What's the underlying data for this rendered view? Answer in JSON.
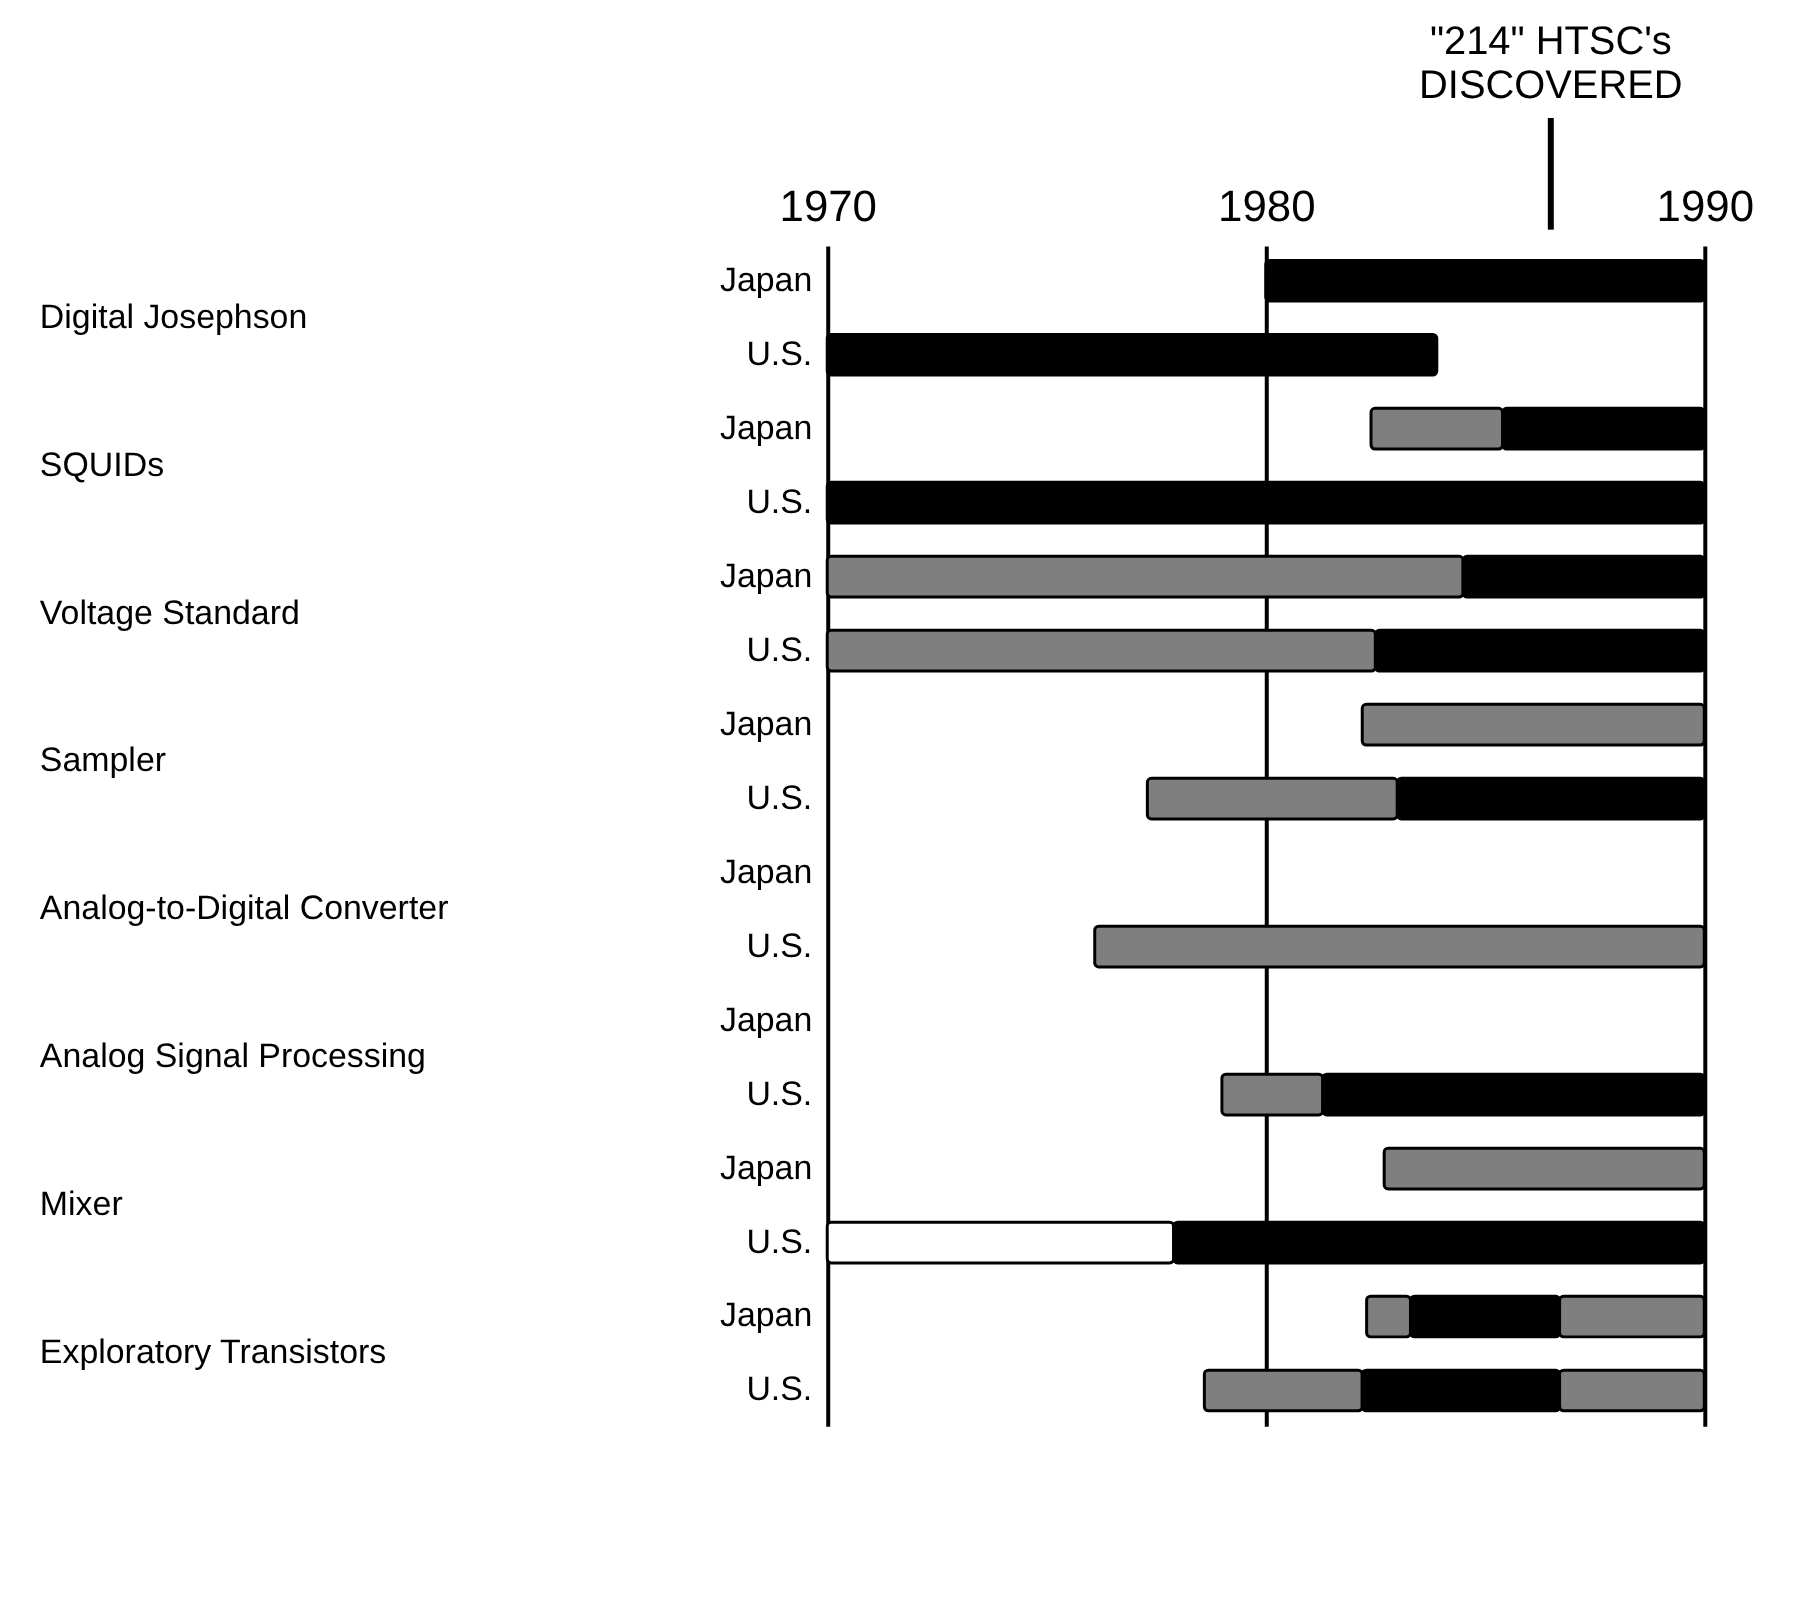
{
  "chart_data": {
    "type": "bar",
    "orientation": "horizontal",
    "categories": [
      "Japan",
      "U.S.",
      "Japan",
      "U.S.",
      "Japan",
      "U.S.",
      "Japan",
      "U.S.",
      "Japan",
      "U.S.",
      "Japan",
      "U.S.",
      "Japan",
      "U.S.",
      "Japan",
      "U.S."
    ],
    "series": [
      {
        "color": "#ffffff",
        "base": [
          null,
          null,
          null,
          null,
          null,
          null,
          null,
          null,
          null,
          null,
          null,
          null,
          null,
          1970,
          null,
          null
        ],
        "values": [
          null,
          null,
          null,
          null,
          null,
          null,
          null,
          null,
          null,
          null,
          null,
          null,
          null,
          7.9,
          null,
          null
        ]
      },
      {
        "color": "#7f7f7f",
        "base": [
          null,
          null,
          1982.4,
          null,
          1970,
          1970,
          1982.2,
          1977.3,
          null,
          1976.1,
          null,
          1979.0,
          1982.7,
          null,
          1982.3,
          1978.6
        ],
        "values": [
          null,
          null,
          3.0,
          null,
          14.5,
          12.5,
          7.8,
          5.7,
          null,
          13.9,
          null,
          2.3,
          7.3,
          null,
          1.0,
          3.6
        ]
      },
      {
        "color": "#000000",
        "base": [
          1980,
          1970,
          1985.4,
          1970,
          1984.5,
          1982.5,
          null,
          1983.0,
          null,
          null,
          null,
          1981.3,
          null,
          1977.9,
          1983.3,
          1982.2
        ],
        "values": [
          10,
          13.9,
          4.6,
          20,
          5.5,
          7.5,
          null,
          7.0,
          null,
          null,
          null,
          8.7,
          null,
          12.1,
          3.4,
          4.5
        ]
      },
      {
        "color": "#7f7f7f",
        "base": [
          null,
          null,
          null,
          null,
          null,
          null,
          null,
          null,
          null,
          null,
          null,
          null,
          null,
          null,
          1986.7,
          1986.7
        ],
        "values": [
          null,
          null,
          null,
          null,
          null,
          null,
          null,
          null,
          null,
          null,
          null,
          null,
          null,
          null,
          3.3,
          3.3
        ]
      }
    ],
    "xlim": [
      1970,
      1990
    ],
    "xticks": [
      1970,
      1980,
      1990
    ],
    "grid": "x",
    "ref_lines": [
      {
        "axis": "x",
        "value": 1986.5,
        "label": "\"214\" HTSC's\nDISCOVERED"
      }
    ],
    "annotations": [
      "Digital Josephson",
      "SQUIDs",
      "Voltage Standard",
      "Sampler",
      "Analog-to-Digital Converter",
      "Analog Signal Processing",
      "Mixer",
      "Exploratory Transistors"
    ]
  }
}
